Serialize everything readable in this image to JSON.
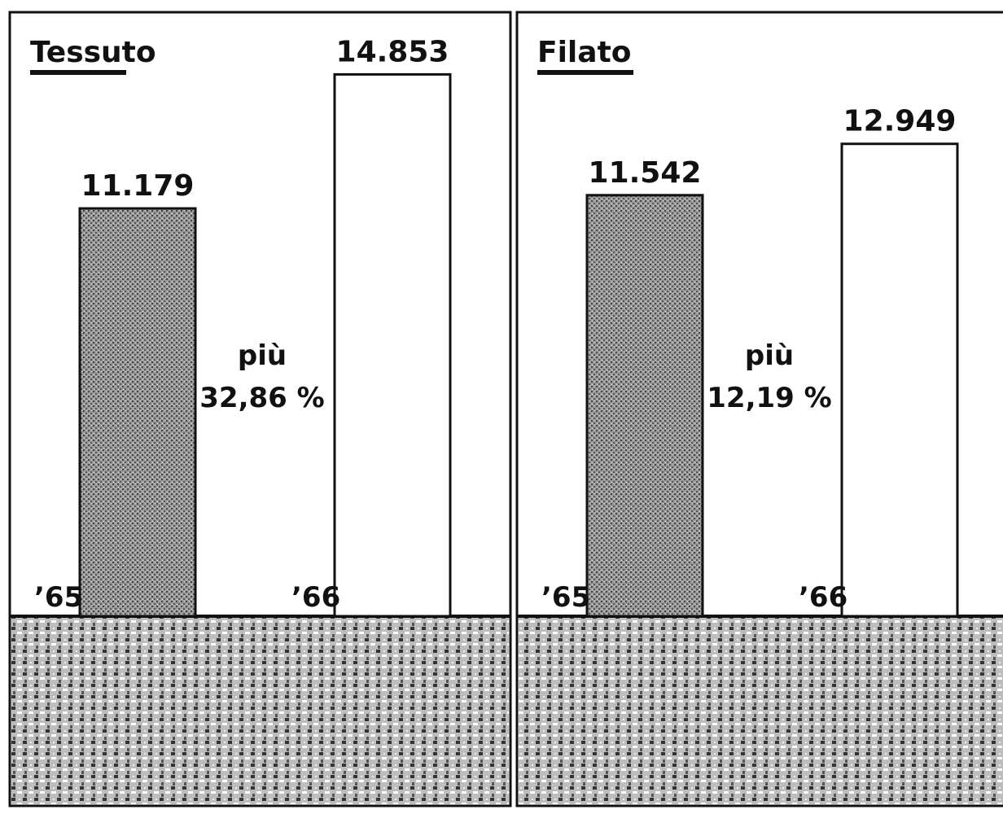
{
  "chart_data": [
    {
      "type": "bar",
      "title": "Tessuto",
      "categories": [
        "’65",
        "’66"
      ],
      "values": [
        11179,
        14853
      ],
      "value_labels": [
        "11.179",
        "14.853"
      ],
      "colors": [
        "#8c8c8c",
        "#ffffff"
      ],
      "ylim": [
        0,
        16000
      ],
      "annotations": [
        "più",
        "32,86 %"
      ]
    },
    {
      "type": "bar",
      "title": "Filato",
      "categories": [
        "’65",
        "’66"
      ],
      "values": [
        11542,
        12949
      ],
      "value_labels": [
        "11.542",
        "12.949"
      ],
      "colors": [
        "#8c8c8c",
        "#ffffff"
      ],
      "ylim": [
        0,
        16000
      ],
      "annotations": [
        "più",
        "12,19 %"
      ]
    }
  ]
}
